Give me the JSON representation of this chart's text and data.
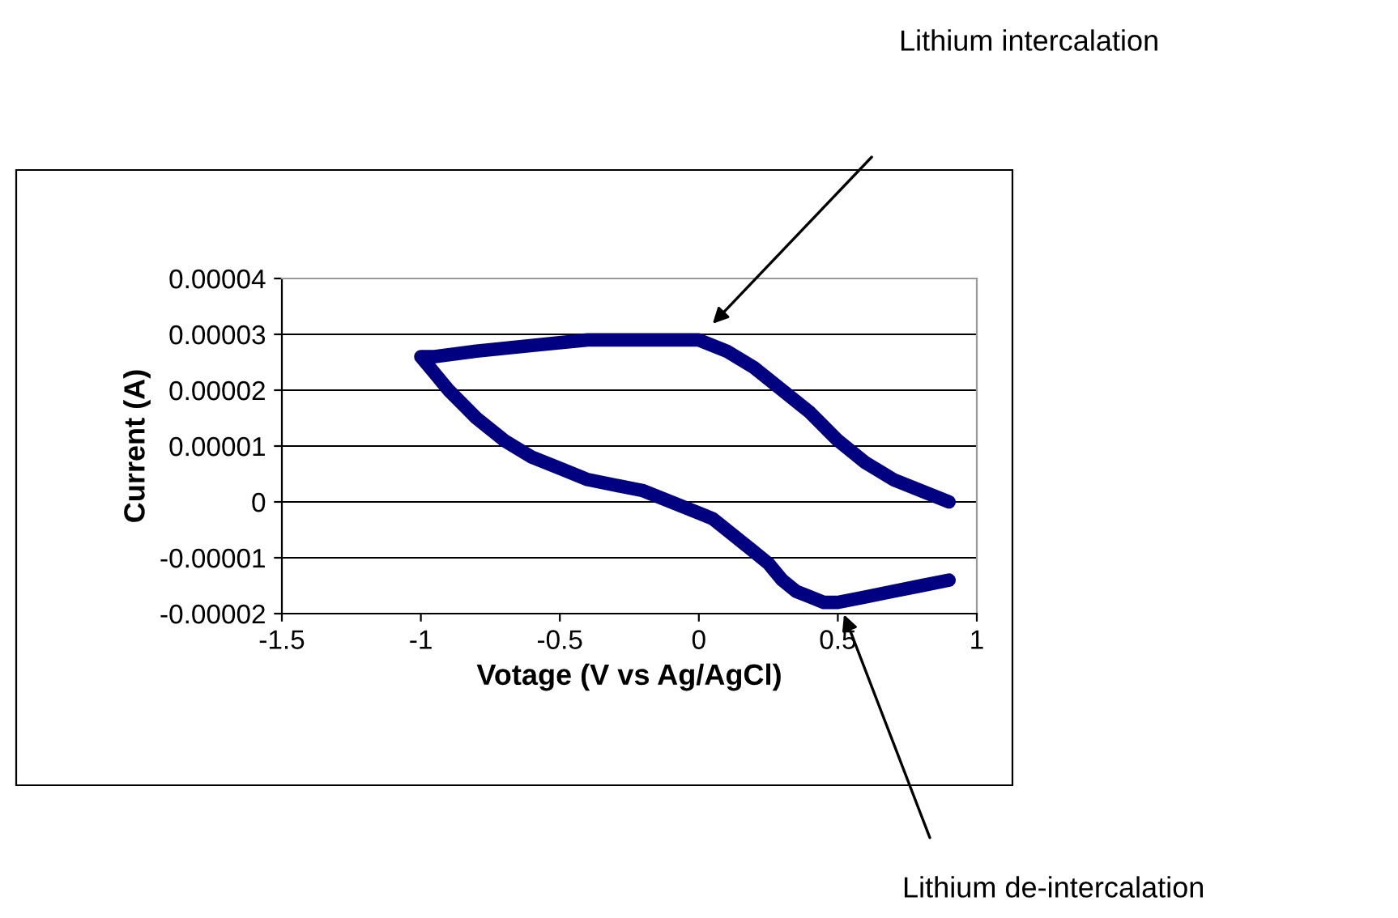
{
  "chart_data": {
    "type": "line",
    "xlabel": "Votage (V vs Ag/AgCl)",
    "ylabel": "Current (A)",
    "x": [
      0.9,
      0.8,
      0.7,
      0.6,
      0.5,
      0.45,
      0.4,
      0.35,
      0.3,
      0.25,
      0.2,
      0.15,
      0.1,
      0.05,
      0,
      -0.1,
      -0.2,
      -0.3,
      -0.4,
      -0.5,
      -0.6,
      -0.7,
      -0.8,
      -0.9,
      -0.95,
      -1.0,
      -0.95,
      -0.8,
      -0.6,
      -0.4,
      -0.2,
      -0.1,
      0,
      0.1,
      0.2,
      0.3,
      0.4,
      0.5,
      0.6,
      0.7,
      0.8,
      0.9
    ],
    "series": [
      {
        "color": "#000080",
        "values": [
          -1.4e-05,
          -1.5e-05,
          -1.6e-05,
          -1.7e-05,
          -1.8e-05,
          -1.8e-05,
          -1.7e-05,
          -1.6e-05,
          -1.4e-05,
          -1.1e-05,
          -9e-06,
          -7e-06,
          -5e-06,
          -3e-06,
          -2e-06,
          0,
          2e-06,
          3e-06,
          4e-06,
          6e-06,
          8e-06,
          1.1e-05,
          1.5e-05,
          2e-05,
          2.3e-05,
          2.6e-05,
          2.6e-05,
          2.7e-05,
          2.8e-05,
          2.9e-05,
          2.9e-05,
          2.9e-05,
          2.9e-05,
          2.7e-05,
          2.4e-05,
          2e-05,
          1.6e-05,
          1.1e-05,
          7e-06,
          4e-06,
          2e-06,
          0
        ]
      }
    ],
    "xlim": [
      -1.5,
      1
    ],
    "xticks": [
      -1.5,
      -1,
      -0.5,
      0,
      0.5,
      1
    ],
    "ylim": [
      -2e-05,
      4e-05
    ],
    "yticks": [
      {
        "value": -2e-05,
        "label": "-0.00002"
      },
      {
        "value": -1e-05,
        "label": "-0.00001"
      },
      {
        "value": 0,
        "label": "0"
      },
      {
        "value": 1e-05,
        "label": "0.00001"
      },
      {
        "value": 2e-05,
        "label": "0.00002"
      },
      {
        "value": 3e-05,
        "label": "0.00003"
      },
      {
        "value": 4e-05,
        "label": "0.00004"
      }
    ],
    "grid": "y",
    "line_style": "solid",
    "annotations": [
      "Lithium intercalation",
      "Lithium de-intercalation"
    ]
  }
}
